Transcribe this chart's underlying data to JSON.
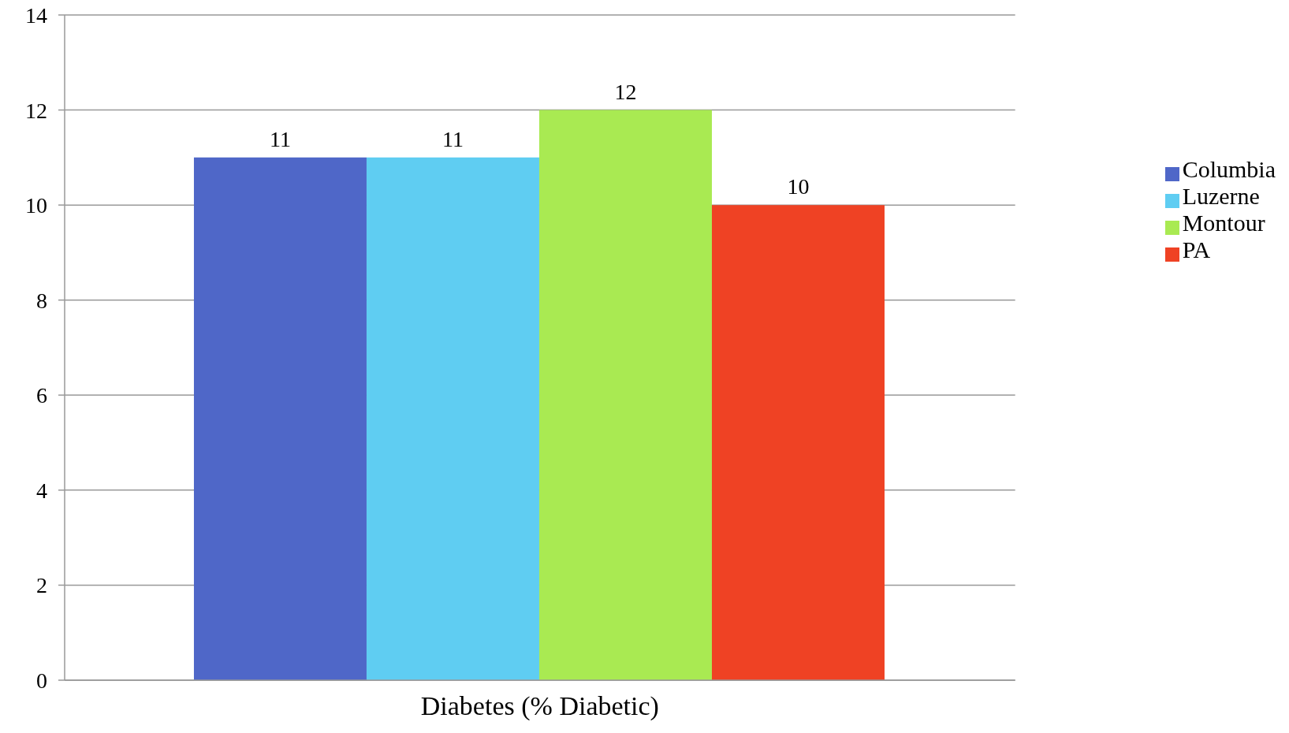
{
  "chart_data": {
    "type": "bar",
    "categories": [
      "Diabetes (% Diabetic)"
    ],
    "series": [
      {
        "name": "Columbia",
        "color": "#4f67c8",
        "values": [
          11
        ]
      },
      {
        "name": "Luzerne",
        "color": "#5fcdf2",
        "values": [
          11
        ]
      },
      {
        "name": "Montour",
        "color": "#a9ea52",
        "values": [
          12
        ]
      },
      {
        "name": "PA",
        "color": "#ef4224",
        "values": [
          10
        ]
      }
    ],
    "ylim": [
      0,
      14
    ],
    "yticks": [
      0,
      2,
      4,
      6,
      8,
      10,
      12,
      14
    ],
    "grid": "y",
    "legend": "right",
    "data_labels": true
  }
}
